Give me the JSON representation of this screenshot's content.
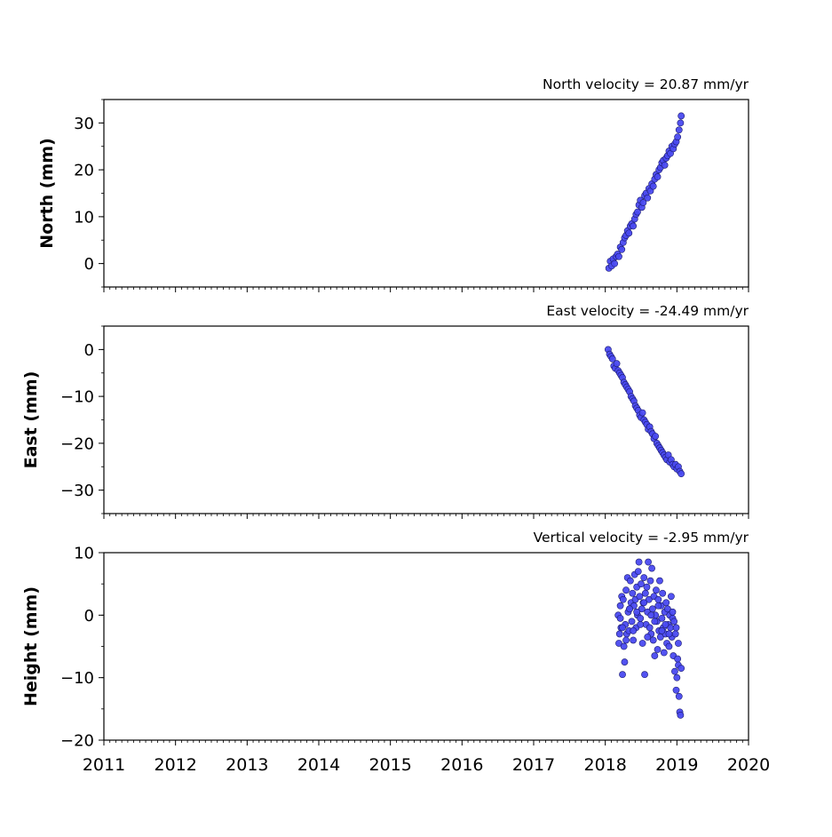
{
  "colors": {
    "marker_fill": "#4a4af0",
    "marker_edge": "#1a1a6e",
    "axes": "#000000"
  },
  "chart_data": [
    {
      "type": "scatter",
      "title": "North velocity = 20.87 mm/yr",
      "ylabel": "North (mm)",
      "xlim": [
        2011,
        2020
      ],
      "ylim": [
        -5,
        35
      ],
      "yticks": [
        0,
        10,
        20,
        30
      ],
      "yticklabels": [
        "0",
        "10",
        "20",
        "30"
      ],
      "xticks": [
        2011,
        2012,
        2013,
        2014,
        2015,
        2016,
        2017,
        2018,
        2019,
        2020
      ],
      "xticklabels": [],
      "grid": false,
      "series": [
        {
          "x": [
            2018.05,
            2018.07,
            2018.09,
            2018.11,
            2018.13,
            2018.15,
            2018.17,
            2018.19,
            2018.21,
            2018.23,
            2018.25,
            2018.27,
            2018.29,
            2018.31,
            2018.33,
            2018.35,
            2018.37,
            2018.39,
            2018.41,
            2018.43,
            2018.45,
            2018.47,
            2018.49,
            2018.51,
            2018.53,
            2018.55,
            2018.57,
            2018.59,
            2018.61,
            2018.63,
            2018.65,
            2018.67,
            2018.69,
            2018.71,
            2018.73,
            2018.75,
            2018.77,
            2018.79,
            2018.81,
            2018.83,
            2018.85,
            2018.87,
            2018.89,
            2018.91,
            2018.93,
            2018.95,
            2018.97,
            2018.99,
            2019.01,
            2019.03,
            2019.05,
            2019.06
          ],
          "y": [
            -1.0,
            0.5,
            -0.5,
            1.0,
            0.0,
            1.5,
            2.0,
            1.5,
            3.5,
            3.0,
            4.5,
            5.5,
            6.0,
            7.0,
            6.5,
            8.0,
            8.5,
            8.0,
            9.5,
            10.5,
            11.0,
            12.5,
            13.5,
            12.0,
            13.0,
            14.5,
            15.0,
            14.0,
            16.0,
            15.5,
            17.0,
            16.5,
            18.0,
            19.0,
            18.5,
            20.0,
            20.5,
            21.5,
            22.0,
            21.0,
            22.5,
            23.0,
            24.0,
            23.5,
            25.0,
            24.5,
            25.5,
            26.0,
            27.0,
            28.5,
            30.0,
            31.5
          ]
        }
      ]
    },
    {
      "type": "scatter",
      "title": "East velocity = -24.49 mm/yr",
      "ylabel": "East (mm)",
      "xlim": [
        2011,
        2020
      ],
      "ylim": [
        -35,
        5
      ],
      "yticks": [
        0,
        -10,
        -20,
        -30
      ],
      "yticklabels": [
        "0",
        "−10",
        "−20",
        "−30"
      ],
      "xticks": [
        2011,
        2012,
        2013,
        2014,
        2015,
        2016,
        2017,
        2018,
        2019,
        2020
      ],
      "xticklabels": [],
      "grid": false,
      "series": [
        {
          "x": [
            2018.04,
            2018.06,
            2018.08,
            2018.1,
            2018.12,
            2018.14,
            2018.16,
            2018.18,
            2018.2,
            2018.22,
            2018.24,
            2018.26,
            2018.28,
            2018.3,
            2018.32,
            2018.34,
            2018.36,
            2018.38,
            2018.4,
            2018.42,
            2018.44,
            2018.46,
            2018.48,
            2018.5,
            2018.52,
            2018.54,
            2018.56,
            2018.58,
            2018.6,
            2018.62,
            2018.64,
            2018.66,
            2018.68,
            2018.7,
            2018.72,
            2018.74,
            2018.76,
            2018.78,
            2018.8,
            2018.82,
            2018.84,
            2018.86,
            2018.88,
            2018.9,
            2018.92,
            2018.94,
            2018.96,
            2018.98,
            2019.0,
            2019.02,
            2019.04,
            2019.06
          ],
          "y": [
            0.0,
            -1.0,
            -1.5,
            -2.0,
            -3.5,
            -4.0,
            -3.0,
            -4.5,
            -5.0,
            -5.5,
            -6.0,
            -7.0,
            -7.5,
            -8.0,
            -8.5,
            -9.0,
            -10.0,
            -10.5,
            -11.0,
            -12.0,
            -12.5,
            -13.0,
            -14.0,
            -14.5,
            -13.5,
            -15.0,
            -15.5,
            -16.0,
            -17.0,
            -16.5,
            -17.5,
            -18.0,
            -19.0,
            -18.5,
            -20.0,
            -20.5,
            -21.0,
            -21.5,
            -22.0,
            -22.5,
            -23.0,
            -23.5,
            -22.5,
            -24.0,
            -23.5,
            -24.5,
            -25.0,
            -24.5,
            -25.5,
            -25.0,
            -26.0,
            -26.5
          ]
        }
      ]
    },
    {
      "type": "scatter",
      "title": "Vertical velocity = -2.95 mm/yr",
      "ylabel": "Height (mm)",
      "xlim": [
        2011,
        2020
      ],
      "ylim": [
        -20,
        10
      ],
      "yticks": [
        10,
        0,
        -10,
        -20
      ],
      "yticklabels": [
        "10",
        "0",
        "−10",
        "−20"
      ],
      "xticks": [
        2011,
        2012,
        2013,
        2014,
        2015,
        2016,
        2017,
        2018,
        2019,
        2020
      ],
      "xticklabels": [
        "2011",
        "2012",
        "2013",
        "2014",
        "2015",
        "2016",
        "2017",
        "2018",
        "2019",
        "2020"
      ],
      "grid": false,
      "series": [
        {
          "x": [
            2018.18,
            2018.19,
            2018.2,
            2018.21,
            2018.22,
            2018.23,
            2018.24,
            2018.25,
            2018.26,
            2018.27,
            2018.28,
            2018.29,
            2018.3,
            2018.31,
            2018.32,
            2018.33,
            2018.34,
            2018.35,
            2018.36,
            2018.37,
            2018.38,
            2018.39,
            2018.4,
            2018.41,
            2018.42,
            2018.43,
            2018.44,
            2018.45,
            2018.46,
            2018.47,
            2018.48,
            2018.49,
            2018.5,
            2018.51,
            2018.52,
            2018.53,
            2018.54,
            2018.55,
            2018.56,
            2018.57,
            2018.58,
            2018.59,
            2018.6,
            2018.61,
            2018.62,
            2018.63,
            2018.64,
            2018.65,
            2018.66,
            2018.67,
            2018.68,
            2018.69,
            2018.7,
            2018.71,
            2018.72,
            2018.73,
            2018.74,
            2018.75,
            2018.76,
            2018.77,
            2018.78,
            2018.79,
            2018.8,
            2018.81,
            2018.82,
            2018.83,
            2018.84,
            2018.85,
            2018.86,
            2018.87,
            2018.88,
            2018.89,
            2018.9,
            2018.91,
            2018.92,
            2018.93,
            2018.94,
            2018.95,
            2018.96,
            2018.97,
            2018.98,
            2018.99,
            2019.0,
            2019.01,
            2019.02,
            2019.03,
            2019.04,
            2019.05,
            2019.06,
            2018.21,
            2018.24,
            2018.29,
            2018.34,
            2018.39,
            2018.44,
            2018.49,
            2018.54,
            2018.59,
            2018.64,
            2018.69,
            2018.74,
            2018.79,
            2018.84,
            2018.89,
            2018.94,
            2018.99,
            2019.02
          ],
          "y": [
            0.0,
            -4.5,
            -3.0,
            1.5,
            -2.0,
            3.0,
            -9.5,
            2.5,
            -5.0,
            -7.5,
            -1.5,
            4.0,
            -3.0,
            6.0,
            0.5,
            -2.5,
            1.0,
            5.5,
            2.0,
            -1.0,
            3.5,
            -4.0,
            1.5,
            6.5,
            2.5,
            -2.0,
            4.5,
            0.0,
            7.0,
            8.5,
            3.0,
            -0.5,
            5.0,
            1.0,
            -4.5,
            2.0,
            6.0,
            -9.5,
            3.5,
            -1.5,
            4.5,
            0.5,
            8.5,
            2.5,
            -2.0,
            5.5,
            -3.0,
            7.5,
            1.0,
            -4.0,
            3.0,
            -6.5,
            0.0,
            4.0,
            -1.0,
            -5.5,
            2.5,
            -2.5,
            5.5,
            -3.5,
            1.5,
            -0.5,
            3.5,
            -2.0,
            -6.0,
            0.5,
            -3.0,
            2.0,
            -4.5,
            1.0,
            -1.5,
            -5.0,
            0.0,
            -2.0,
            3.0,
            -3.5,
            -0.5,
            -6.5,
            -1.0,
            -9.0,
            -3.0,
            -12.0,
            -10.0,
            -7.0,
            -8.0,
            -13.0,
            -15.5,
            -16.0,
            -8.5,
            -0.5,
            -2.0,
            -4.0,
            1.0,
            -2.5,
            0.5,
            -1.5,
            2.0,
            -3.5,
            0.0,
            -1.0,
            1.5,
            -2.5,
            -1.5,
            -3.0,
            0.5,
            -2.0,
            -4.5
          ]
        }
      ]
    }
  ]
}
